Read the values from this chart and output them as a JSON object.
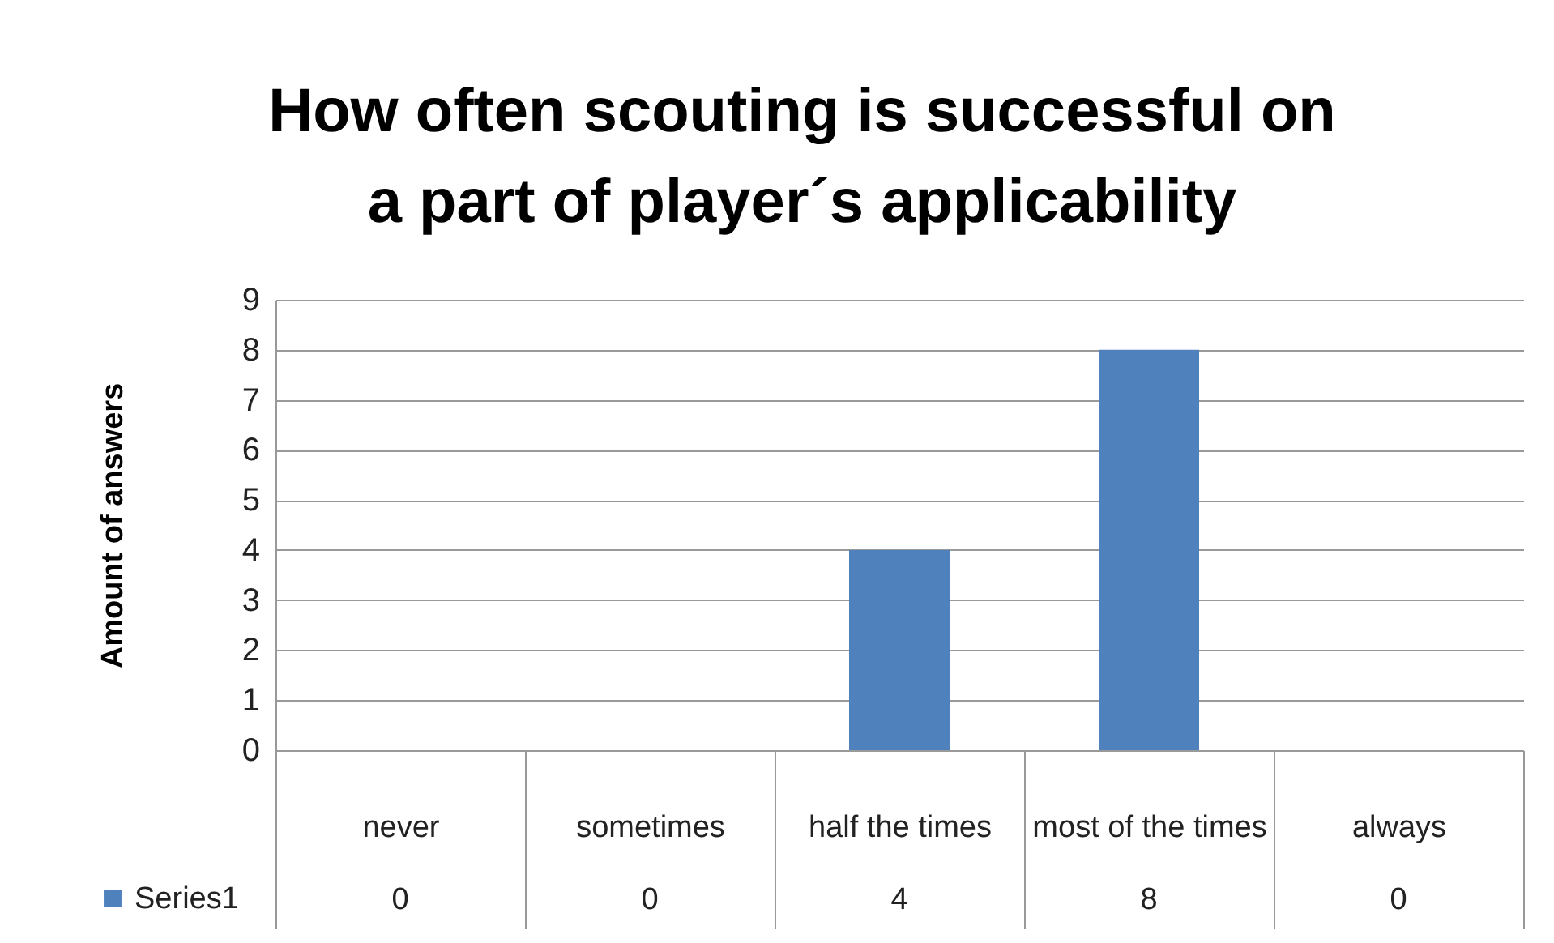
{
  "chart_data": {
    "type": "bar",
    "title": "How often scouting is successful on a part of player´s applicability",
    "ylabel": "Amount of answers",
    "categories": [
      "never",
      "sometimes",
      "half the times",
      "most of the times",
      "always"
    ],
    "series": [
      {
        "name": "Series1",
        "color": "#4f81bd",
        "values": [
          0,
          0,
          4,
          8,
          0
        ]
      }
    ],
    "ylim": [
      0,
      9
    ],
    "yticks": [
      0,
      1,
      2,
      3,
      4,
      5,
      6,
      7,
      8,
      9
    ],
    "grid": "y",
    "legend": "bottom left",
    "data_labels": true
  }
}
